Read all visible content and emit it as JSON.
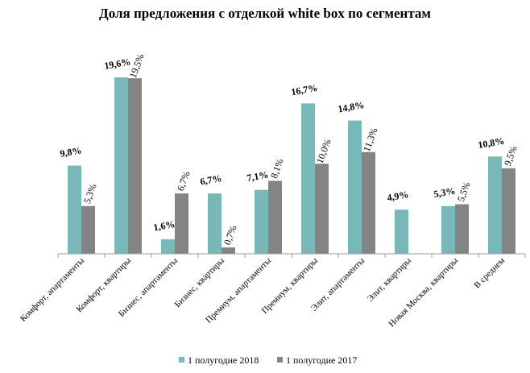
{
  "chart_data": {
    "type": "bar",
    "title": "Доля предложения с отделкой white box по сегментам",
    "xlabel": "",
    "ylabel": "",
    "ylim": [
      0,
      20
    ],
    "grid": false,
    "legend_position": "bottom",
    "categories": [
      "Комфорт, апартаменты",
      "Комфорт, квартиры",
      "Бизнес, апартаменты",
      "Бизнес, квартиры",
      "Премиум, апартаменты",
      "Премиум, квартиры",
      "Элит, апартаменты",
      "Элит, квартиры",
      "Новая Москва, квартиры",
      "В среднем"
    ],
    "series": [
      {
        "name": "1 полугодие 2018",
        "color": "#79B8B8",
        "values": [
          9.8,
          19.6,
          1.6,
          6.7,
          7.1,
          16.7,
          14.8,
          4.9,
          5.3,
          10.8
        ],
        "labels": [
          "9,8%",
          "19,6%",
          "1,6%",
          "6,7%",
          "7,1%",
          "16,7%",
          "14,8%",
          "4,9%",
          "5,3%",
          "10,8%"
        ]
      },
      {
        "name": "1 полугодие 2017",
        "color": "#848484",
        "values": [
          5.3,
          19.5,
          6.7,
          0.7,
          8.1,
          10.0,
          11.3,
          null,
          5.5,
          9.5
        ],
        "labels": [
          "5,3%",
          "19,5%",
          "6,7%",
          "0,7%",
          "8,1%",
          "10,0%",
          "11,3%",
          "",
          "5,5%",
          "9,5%"
        ]
      }
    ]
  }
}
